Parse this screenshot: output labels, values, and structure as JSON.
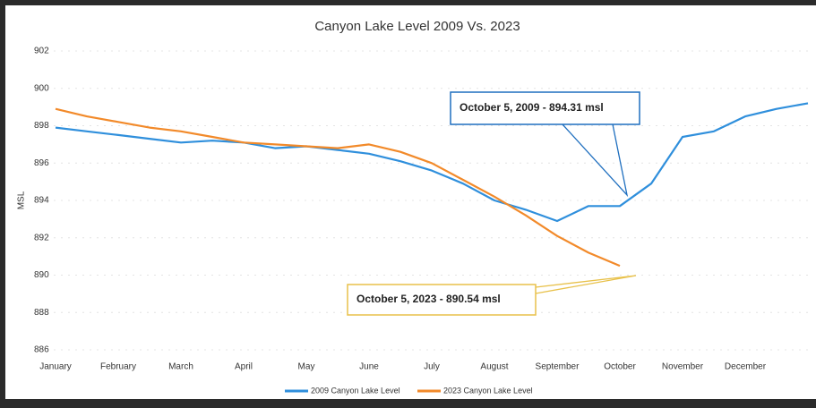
{
  "chart_data": {
    "type": "line",
    "title": "Canyon Lake Level 2009 Vs. 2023",
    "ylabel": "MSL",
    "categories": [
      "January",
      null,
      "February",
      null,
      "March",
      null,
      "April",
      null,
      "May",
      null,
      "June",
      null,
      "July",
      null,
      "August",
      null,
      "September",
      null,
      "October",
      null,
      "November",
      null,
      "December",
      null,
      null
    ],
    "series": [
      {
        "name": "2009 Canyon Lake Level",
        "color": "#2f8fdc",
        "values": [
          897.9,
          897.7,
          897.5,
          897.3,
          897.1,
          897.2,
          897.1,
          896.8,
          896.9,
          896.7,
          896.5,
          896.1,
          895.6,
          894.9,
          894.0,
          893.5,
          892.9,
          893.7,
          893.7,
          894.9,
          897.4,
          897.7,
          898.5,
          898.9,
          899.2
        ]
      },
      {
        "name": "2023 Canyon Lake Level",
        "color": "#f28a2a",
        "values": [
          898.9,
          898.5,
          898.2,
          897.9,
          897.7,
          897.4,
          897.1,
          897.0,
          896.9,
          896.8,
          897.0,
          896.6,
          896.0,
          895.1,
          894.2,
          893.2,
          892.1,
          891.2,
          890.5,
          null,
          null,
          null,
          null,
          null,
          null
        ]
      }
    ],
    "ylim": [
      886,
      902
    ],
    "yticks": [
      886,
      888,
      890,
      892,
      894,
      896,
      898,
      900,
      902
    ],
    "grid": true,
    "legend": "bottom",
    "annotations": [
      {
        "text": "October 5, 2009 - 894.31 msl",
        "color": "#1f6fbf"
      },
      {
        "text": "October 5, 2023 - 890.54 msl",
        "color": "#e8c14a"
      }
    ]
  }
}
